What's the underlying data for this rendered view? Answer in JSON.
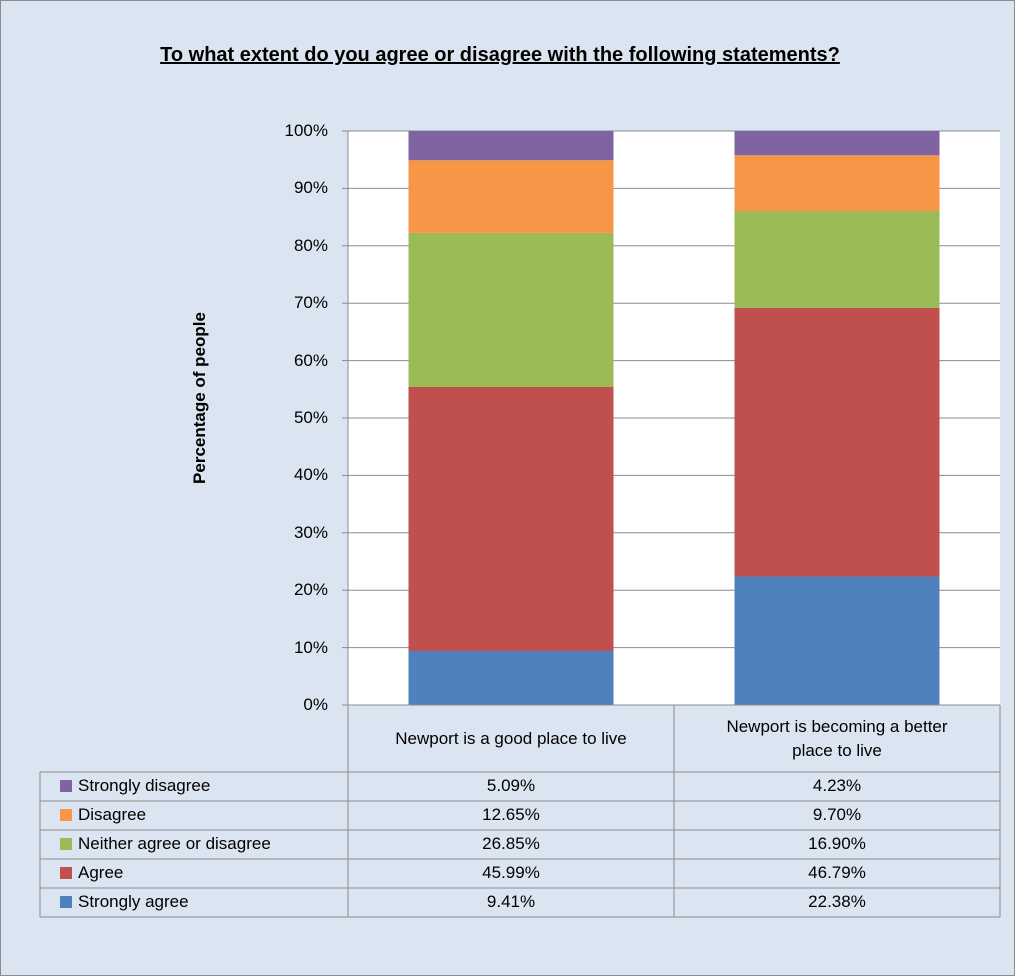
{
  "chart_data": {
    "type": "bar",
    "stacked": true,
    "title": "To what extent do you agree or disagree with the following statements?",
    "ylabel": "Percentage of people",
    "ylim": [
      0,
      100
    ],
    "yticks": [
      "0%",
      "10%",
      "20%",
      "30%",
      "40%",
      "50%",
      "60%",
      "70%",
      "80%",
      "90%",
      "100%"
    ],
    "categories": [
      "Newport is a good place to live",
      "Newport is becoming a better place to live"
    ],
    "series": [
      {
        "name": "Strongly agree",
        "values": [
          9.41,
          22.38
        ],
        "labels": [
          "9.41%",
          "22.38%"
        ],
        "color": "#4f81bd"
      },
      {
        "name": "Agree",
        "values": [
          45.99,
          46.79
        ],
        "labels": [
          "45.99%",
          "46.79%"
        ],
        "color": "#c0504d"
      },
      {
        "name": "Neither agree or disagree",
        "values": [
          26.85,
          16.9
        ],
        "labels": [
          "26.85%",
          "16.90%"
        ],
        "color": "#9bbb59"
      },
      {
        "name": "Disagree",
        "values": [
          12.65,
          9.7
        ],
        "labels": [
          "12.65%",
          "9.70%"
        ],
        "color": "#f79646"
      },
      {
        "name": "Strongly disagree",
        "values": [
          5.09,
          4.23
        ],
        "labels": [
          "5.09%",
          "4.23%"
        ],
        "color": "#8064a2"
      }
    ],
    "data_table": true,
    "grid": true
  }
}
